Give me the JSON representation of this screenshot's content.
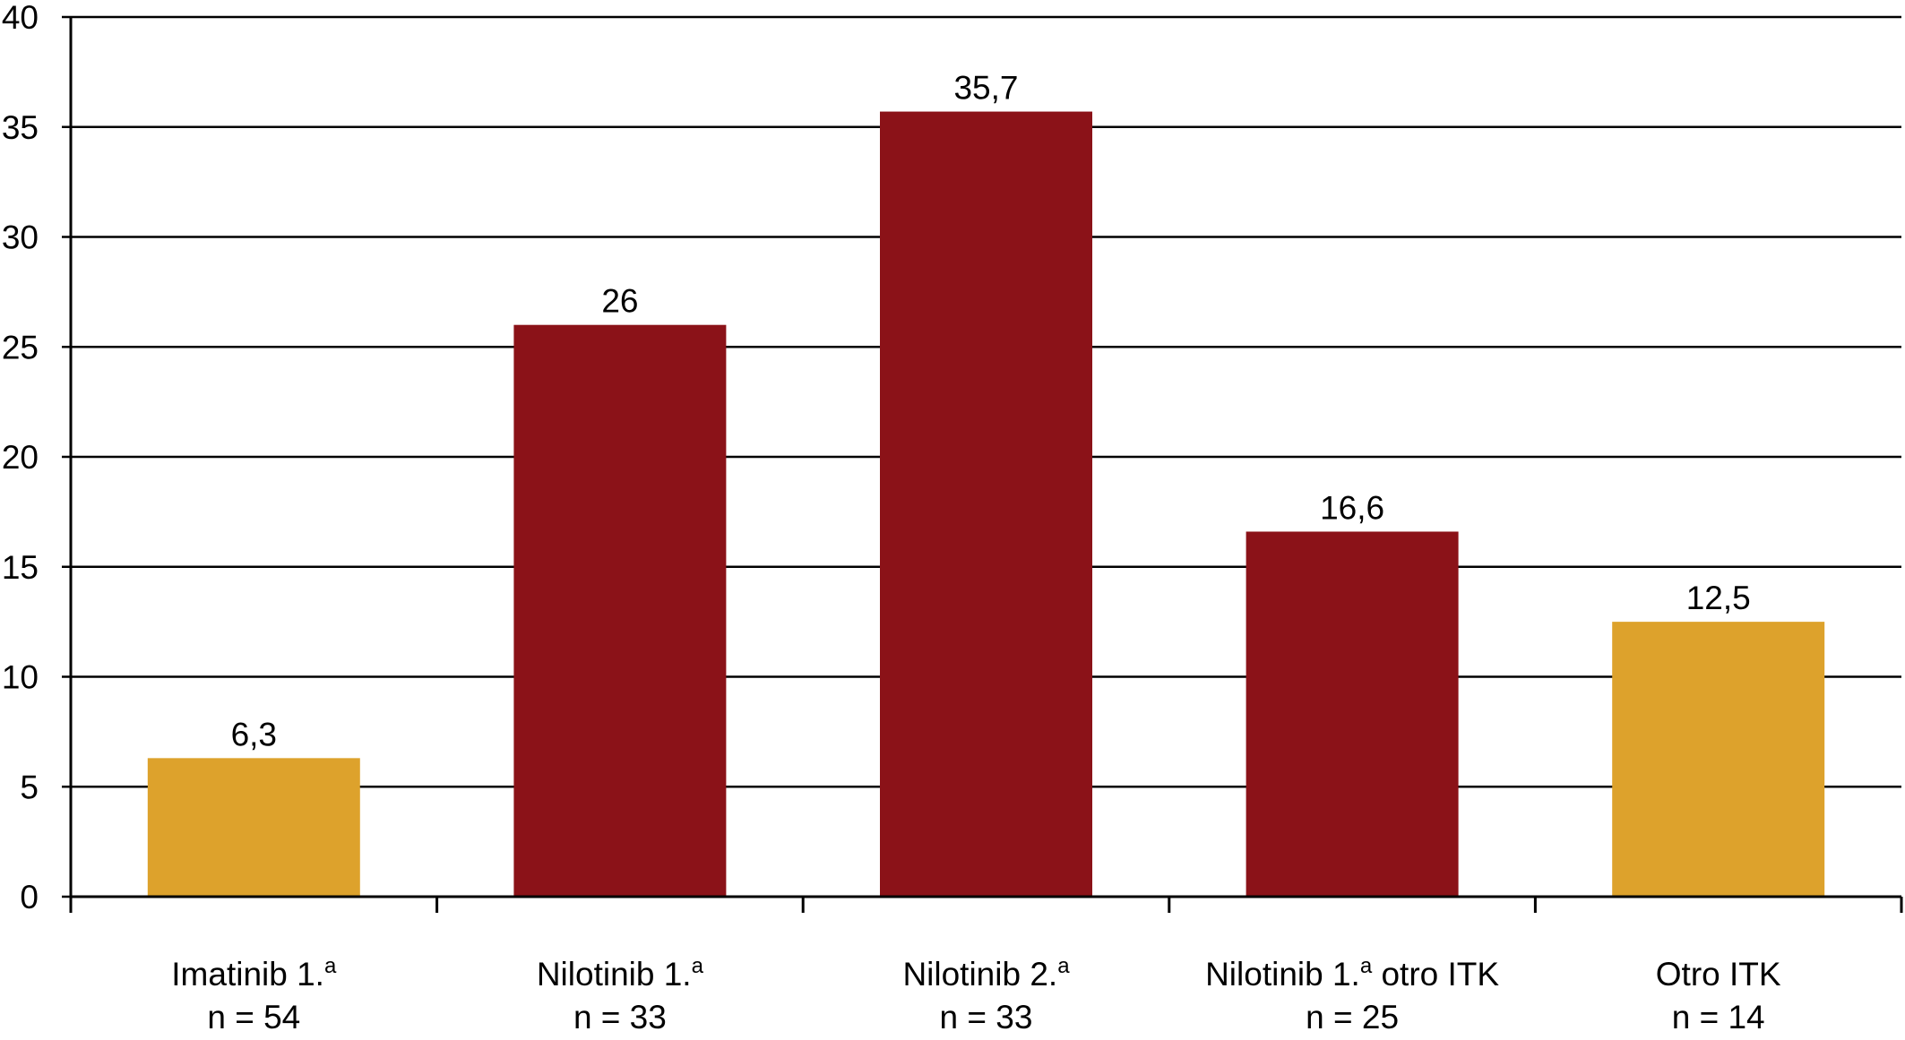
{
  "chart_data": {
    "type": "bar",
    "categories": [
      {
        "label": "Imatinib 1.",
        "sup": "a",
        "n": "n = 54"
      },
      {
        "label": "Nilotinib 1.",
        "sup": "a",
        "n": "n = 33"
      },
      {
        "label": "Nilotinib 2.",
        "sup": "a",
        "n": "n = 33"
      },
      {
        "label": "Nilotinib 1.",
        "sup": "a",
        "rest": " otro ITK",
        "n": "n = 25"
      },
      {
        "label": "Otro ITK",
        "n": "n = 14"
      }
    ],
    "values": [
      6.3,
      26,
      35.7,
      16.6,
      12.5
    ],
    "value_labels": [
      "6,3",
      "26",
      "35,7",
      "16,6",
      "12,5"
    ],
    "colors": [
      "#dda22c",
      "#8b1218",
      "#8b1218",
      "#8b1218",
      "#dda22c"
    ],
    "ylim": [
      0,
      40
    ],
    "yticks": [
      0,
      5,
      10,
      15,
      20,
      25,
      30,
      35,
      40
    ],
    "grid": true
  }
}
